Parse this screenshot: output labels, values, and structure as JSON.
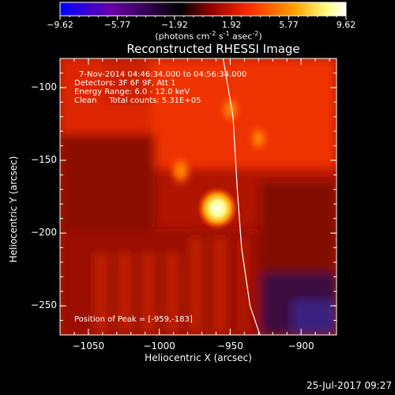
{
  "chart_data": {
    "type": "heatmap",
    "title": "Reconstructed RHESSI Image",
    "xlabel": "Heliocentric X (arcsec)",
    "ylabel": "Heliocentric Y (arcsec)",
    "xlim": [
      -1070,
      -875
    ],
    "ylim": [
      -270,
      -80
    ],
    "xticks": [
      -1050,
      -1000,
      -950,
      -900
    ],
    "yticks": [
      -100,
      -150,
      -200,
      -250
    ],
    "colorbar": {
      "unit_label": "(photons cm",
      "unit_exp1": "-2",
      "unit_mid": " s",
      "unit_exp2": "-1",
      "unit_mid2": " asec",
      "unit_exp3": "-2",
      "unit_end": ")",
      "range": [
        -9.62,
        9.62
      ],
      "tick_labels": [
        "-9.62",
        "-5.77",
        "-1.92",
        "1.92",
        "5.77",
        "9.62"
      ],
      "colors": [
        "#0000ff",
        "#6a00a8",
        "#000000",
        "#b00000",
        "#ff3a00",
        "#ff9f00",
        "#ffff80",
        "#ffffff"
      ]
    },
    "annotations": [
      "7-Nov-2014 04:46:34.000 to 04:56:34.000",
      "Detectors: 3F 6F 9F, Att 1",
      "Energy Range: 6.0 - 12.0 keV",
      "Clean     Total counts: 5.31E+05",
      "Position of Peak = [-959,-183]"
    ],
    "peak": {
      "x": -959,
      "y": -183
    },
    "sources": [
      {
        "x": -959,
        "y": -183,
        "value": 9.62
      },
      {
        "x": -985,
        "y": -157,
        "value": 6.2
      },
      {
        "x": -950,
        "y": -115,
        "value": 4.8
      },
      {
        "x": -930,
        "y": -135,
        "value": 3.9
      }
    ],
    "limb_curve": [
      {
        "x": -955,
        "y": -80
      },
      {
        "x": -948,
        "y": -120
      },
      {
        "x": -945,
        "y": -170
      },
      {
        "x": -942,
        "y": -210
      },
      {
        "x": -936,
        "y": -250
      },
      {
        "x": -929,
        "y": -270
      }
    ]
  },
  "footer": {
    "date": "25-Jul-2017 09:27"
  }
}
